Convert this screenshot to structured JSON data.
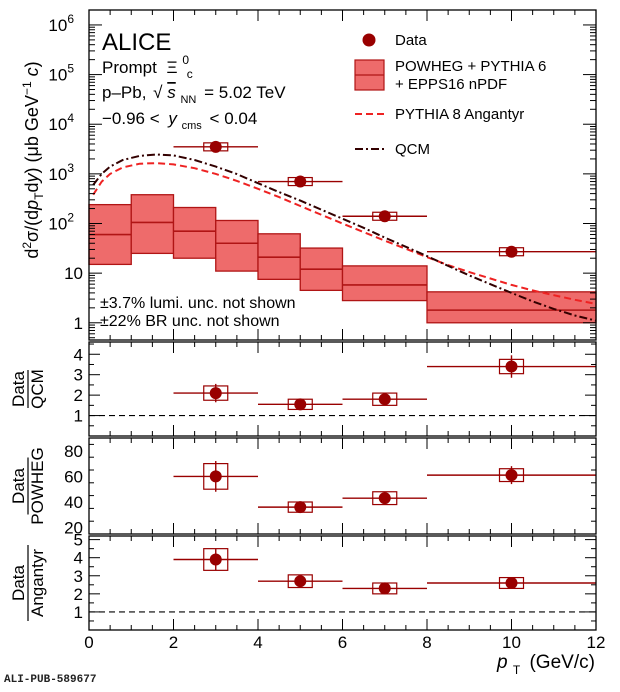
{
  "colors": {
    "data": "#990000",
    "powheg_fill": "#ee6b6b",
    "powheg_line": "#b01515",
    "angantyr": "#ee2222",
    "qcm": "#330000"
  },
  "texts": {
    "alice": "ALICE",
    "prompt": "Prompt",
    "particle": "Ξ",
    "particle_sup": "0",
    "particle_sub": "c",
    "system": "p–Pb,",
    "energy_s": "s",
    "energy_nn": "NN",
    "energy_val": "= 5.02 TeV",
    "rap_left": "−0.96 <",
    "rap_y": "y",
    "rap_sub": "cms",
    "rap_right": "< 0.04",
    "lumi_note": "±3.7% lumi. unc. not shown",
    "br_note": "±22% BR unc. not shown",
    "footer_id": "ALI-PUB-589677"
  },
  "legend": {
    "data": "Data",
    "powheg_l1": "POWHEG + PYTHIA 6",
    "powheg_l2": "+ EPPS16 nPDF",
    "angantyr": "PYTHIA 8 Angantyr",
    "qcm": "QCM"
  },
  "axes": {
    "x_label_p": "p",
    "x_label_sub": "T",
    "x_label_unit": "(GeV/c)",
    "x_ticks": [
      "0",
      "2",
      "4",
      "6",
      "8",
      "10",
      "12"
    ],
    "y_label_main": "d²σ/(dp_T dy) (μb GeV⁻¹ c)",
    "main_ticks": [
      {
        "v": 1,
        "label": "1"
      },
      {
        "v": 10,
        "label": "10"
      },
      {
        "v": 100,
        "label": "10",
        "exp": "2"
      },
      {
        "v": 1000,
        "label": "10",
        "exp": "3"
      },
      {
        "v": 10000,
        "label": "10",
        "exp": "4"
      },
      {
        "v": 100000,
        "label": "10",
        "exp": "5"
      },
      {
        "v": 1000000,
        "label": "10",
        "exp": "6"
      }
    ],
    "ratio_labels": [
      {
        "num": "Data",
        "den": "QCM"
      },
      {
        "num": "Data",
        "den": "POWHEG"
      },
      {
        "num": "Data",
        "den": "Angantyr"
      }
    ]
  },
  "chart_data": [
    {
      "type": "scatter",
      "panel": "cross-section",
      "xlim": [
        0,
        12
      ],
      "ylim": [
        0.45,
        2000000
      ],
      "yscale": "log",
      "data": [
        {
          "x": 3,
          "xlow": 2,
          "xhigh": 4,
          "y": 3500
        },
        {
          "x": 5,
          "xlow": 4,
          "xhigh": 6,
          "y": 700
        },
        {
          "x": 7,
          "xlow": 6,
          "xhigh": 8,
          "y": 140
        },
        {
          "x": 10,
          "xlow": 8,
          "xhigh": 12,
          "y": 27
        }
      ],
      "powheg": [
        {
          "x0": 0,
          "x1": 1,
          "c": 60,
          "lo": 15,
          "hi": 240
        },
        {
          "x0": 1,
          "x1": 2,
          "c": 105,
          "lo": 25,
          "hi": 380
        },
        {
          "x0": 2,
          "x1": 3,
          "c": 70,
          "lo": 20,
          "hi": 210
        },
        {
          "x0": 3,
          "x1": 4,
          "c": 40,
          "lo": 11,
          "hi": 115
        },
        {
          "x0": 4,
          "x1": 5,
          "c": 21,
          "lo": 7.5,
          "hi": 62
        },
        {
          "x0": 5,
          "x1": 6,
          "c": 12,
          "lo": 4.5,
          "hi": 32
        },
        {
          "x0": 6,
          "x1": 8,
          "c": 5.8,
          "lo": 2.8,
          "hi": 14
        },
        {
          "x0": 8,
          "x1": 12,
          "c": 1.8,
          "lo": 1.0,
          "hi": 4.2
        }
      ],
      "angantyr": {
        "x": [
          0.1,
          0.3,
          0.5,
          0.8,
          1.2,
          1.6,
          2,
          2.5,
          3,
          3.5,
          4,
          4.5,
          5,
          5.5,
          6,
          6.5,
          7,
          7.5,
          8,
          8.5,
          9,
          9.5,
          10,
          10.5,
          11,
          11.5,
          12
        ],
        "y": [
          380,
          700,
          1000,
          1350,
          1600,
          1650,
          1550,
          1300,
          1000,
          720,
          500,
          340,
          225,
          150,
          100,
          67,
          45,
          31,
          21,
          14.5,
          10.5,
          7.8,
          5.8,
          4.5,
          3.6,
          2.9,
          2.4
        ]
      },
      "qcm": {
        "x": [
          0.1,
          0.3,
          0.5,
          0.8,
          1.2,
          1.6,
          2,
          2.5,
          3,
          3.5,
          4,
          4.5,
          5,
          5.5,
          6,
          6.5,
          7,
          7.5,
          8,
          8.5,
          9,
          9.5,
          10,
          10.5,
          11,
          11.5,
          12
        ],
        "y": [
          600,
          1000,
          1400,
          1900,
          2300,
          2450,
          2350,
          1900,
          1400,
          990,
          650,
          430,
          290,
          190,
          125,
          82,
          52,
          34,
          22,
          14,
          9,
          6,
          4,
          2.7,
          1.9,
          1.4,
          1.1
        ]
      }
    },
    {
      "type": "scatter",
      "panel": "Data/QCM",
      "xlim": [
        0,
        12
      ],
      "ylim": [
        0,
        4.6
      ],
      "ticks": [
        1,
        2,
        3,
        4
      ],
      "reference": 1,
      "data": [
        {
          "x": 3,
          "xlow": 2,
          "xhigh": 4,
          "y": 2.1,
          "err": 0.45,
          "sys": 0.35
        },
        {
          "x": 5,
          "xlow": 4,
          "xhigh": 6,
          "y": 1.55,
          "err": 0.15,
          "sys": 0.25
        },
        {
          "x": 7,
          "xlow": 6,
          "xhigh": 8,
          "y": 1.8,
          "err": 0.25,
          "sys": 0.3
        },
        {
          "x": 10,
          "xlow": 8,
          "xhigh": 12,
          "y": 3.4,
          "err": 0.55,
          "sys": 0.35
        }
      ]
    },
    {
      "type": "scatter",
      "panel": "Data/POWHEG",
      "xlim": [
        0,
        12
      ],
      "ylim": [
        15,
        90
      ],
      "ticks": [
        20,
        40,
        60,
        80
      ],
      "data": [
        {
          "x": 3,
          "xlow": 2,
          "xhigh": 4,
          "y": 60,
          "err": 12,
          "sys": 10
        },
        {
          "x": 5,
          "xlow": 4,
          "xhigh": 6,
          "y": 36,
          "err": 3,
          "sys": 4
        },
        {
          "x": 7,
          "xlow": 6,
          "xhigh": 8,
          "y": 43,
          "err": 5,
          "sys": 5
        },
        {
          "x": 10,
          "xlow": 8,
          "xhigh": 12,
          "y": 61,
          "err": 7,
          "sys": 5
        }
      ]
    },
    {
      "type": "scatter",
      "panel": "Data/Angantyr",
      "xlim": [
        0,
        12
      ],
      "ylim": [
        0,
        5.2
      ],
      "ticks": [
        1,
        2,
        3,
        4,
        5
      ],
      "reference": 1,
      "data": [
        {
          "x": 3,
          "xlow": 2,
          "xhigh": 4,
          "y": 3.9,
          "err": 0.6,
          "sys": 0.6
        },
        {
          "x": 5,
          "xlow": 4,
          "xhigh": 6,
          "y": 2.7,
          "err": 0.3,
          "sys": 0.35
        },
        {
          "x": 7,
          "xlow": 6,
          "xhigh": 8,
          "y": 2.3,
          "err": 0.3,
          "sys": 0.3
        },
        {
          "x": 10,
          "xlow": 8,
          "xhigh": 12,
          "y": 2.6,
          "err": 0.3,
          "sys": 0.3
        }
      ]
    }
  ]
}
